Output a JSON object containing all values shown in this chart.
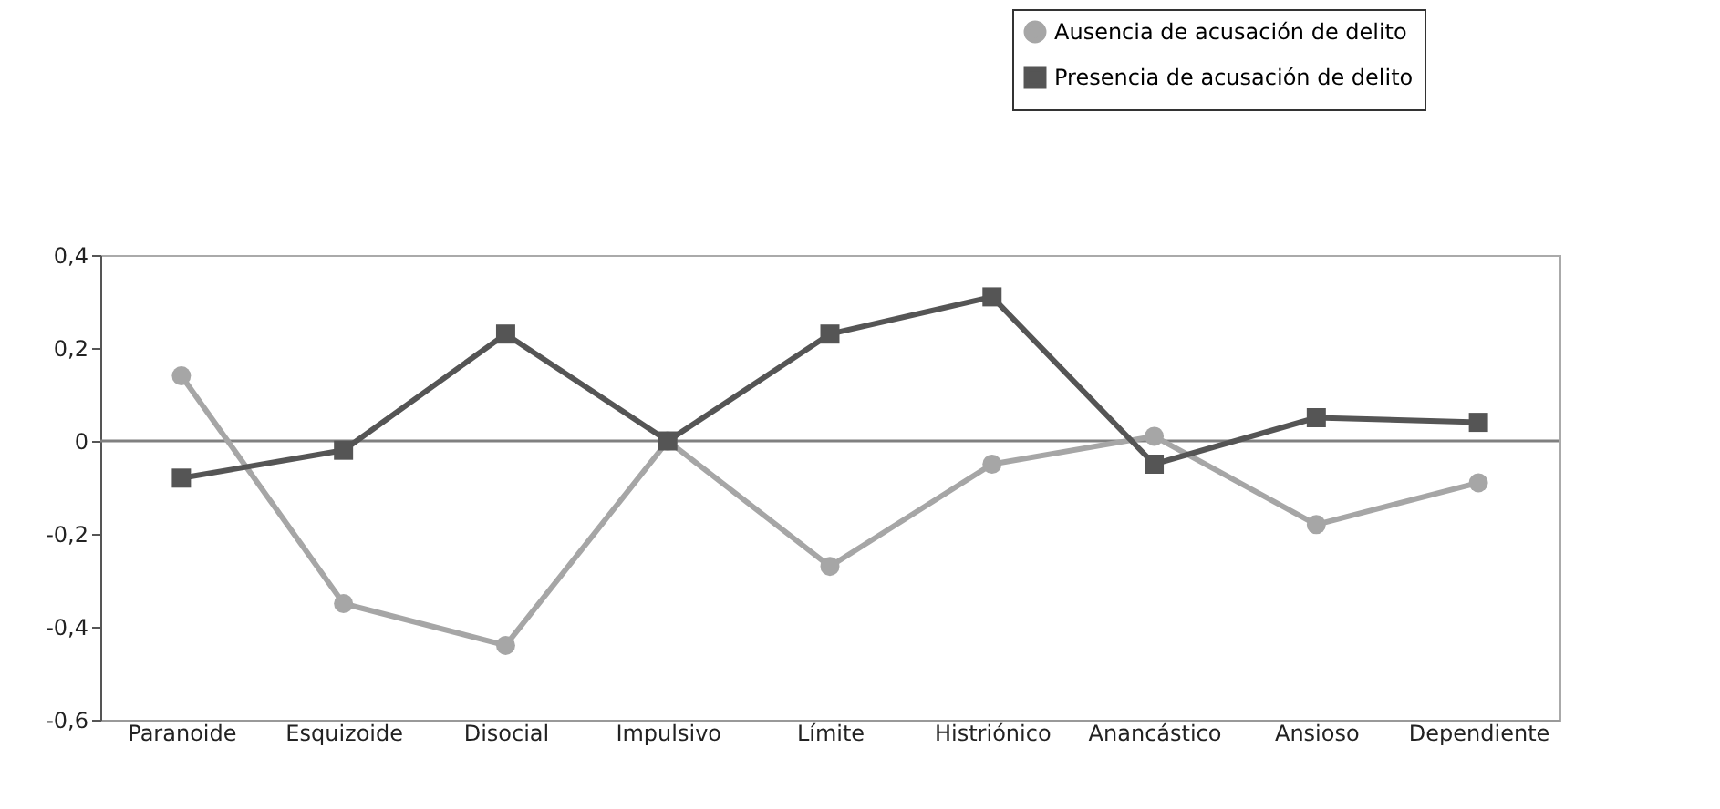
{
  "chart_data": {
    "type": "line",
    "categories": [
      "Paranoide",
      "Esquizoide",
      "Disocial",
      "Impulsivo",
      "Límite",
      "Histriónico",
      "Anancástico",
      "Ansioso",
      "Dependiente"
    ],
    "series": [
      {
        "name": "Ausencia de acusación de delito",
        "color": "#a6a6a6",
        "marker": "circle",
        "values": [
          0.14,
          -0.35,
          -0.44,
          0.0,
          -0.27,
          -0.05,
          0.01,
          -0.18,
          -0.09
        ]
      },
      {
        "name": "Presencia de acusación de delito",
        "color": "#555555",
        "marker": "square",
        "values": [
          -0.08,
          -0.02,
          0.23,
          0.0,
          0.23,
          0.31,
          -0.05,
          0.05,
          0.04
        ]
      }
    ],
    "ylim": [
      -0.6,
      0.4
    ],
    "yticks": [
      {
        "value": -0.6,
        "label": "-0,6"
      },
      {
        "value": -0.4,
        "label": "-0,4"
      },
      {
        "value": -0.2,
        "label": "-0,2"
      },
      0,
      {
        "value": 0.2,
        "label": "0,2"
      },
      {
        "value": 0.4,
        "label": "0,4"
      }
    ],
    "ref_lines": [
      {
        "axis": "y",
        "value": 0,
        "color": "#808080"
      }
    ],
    "grid": false,
    "legend": "top right"
  }
}
